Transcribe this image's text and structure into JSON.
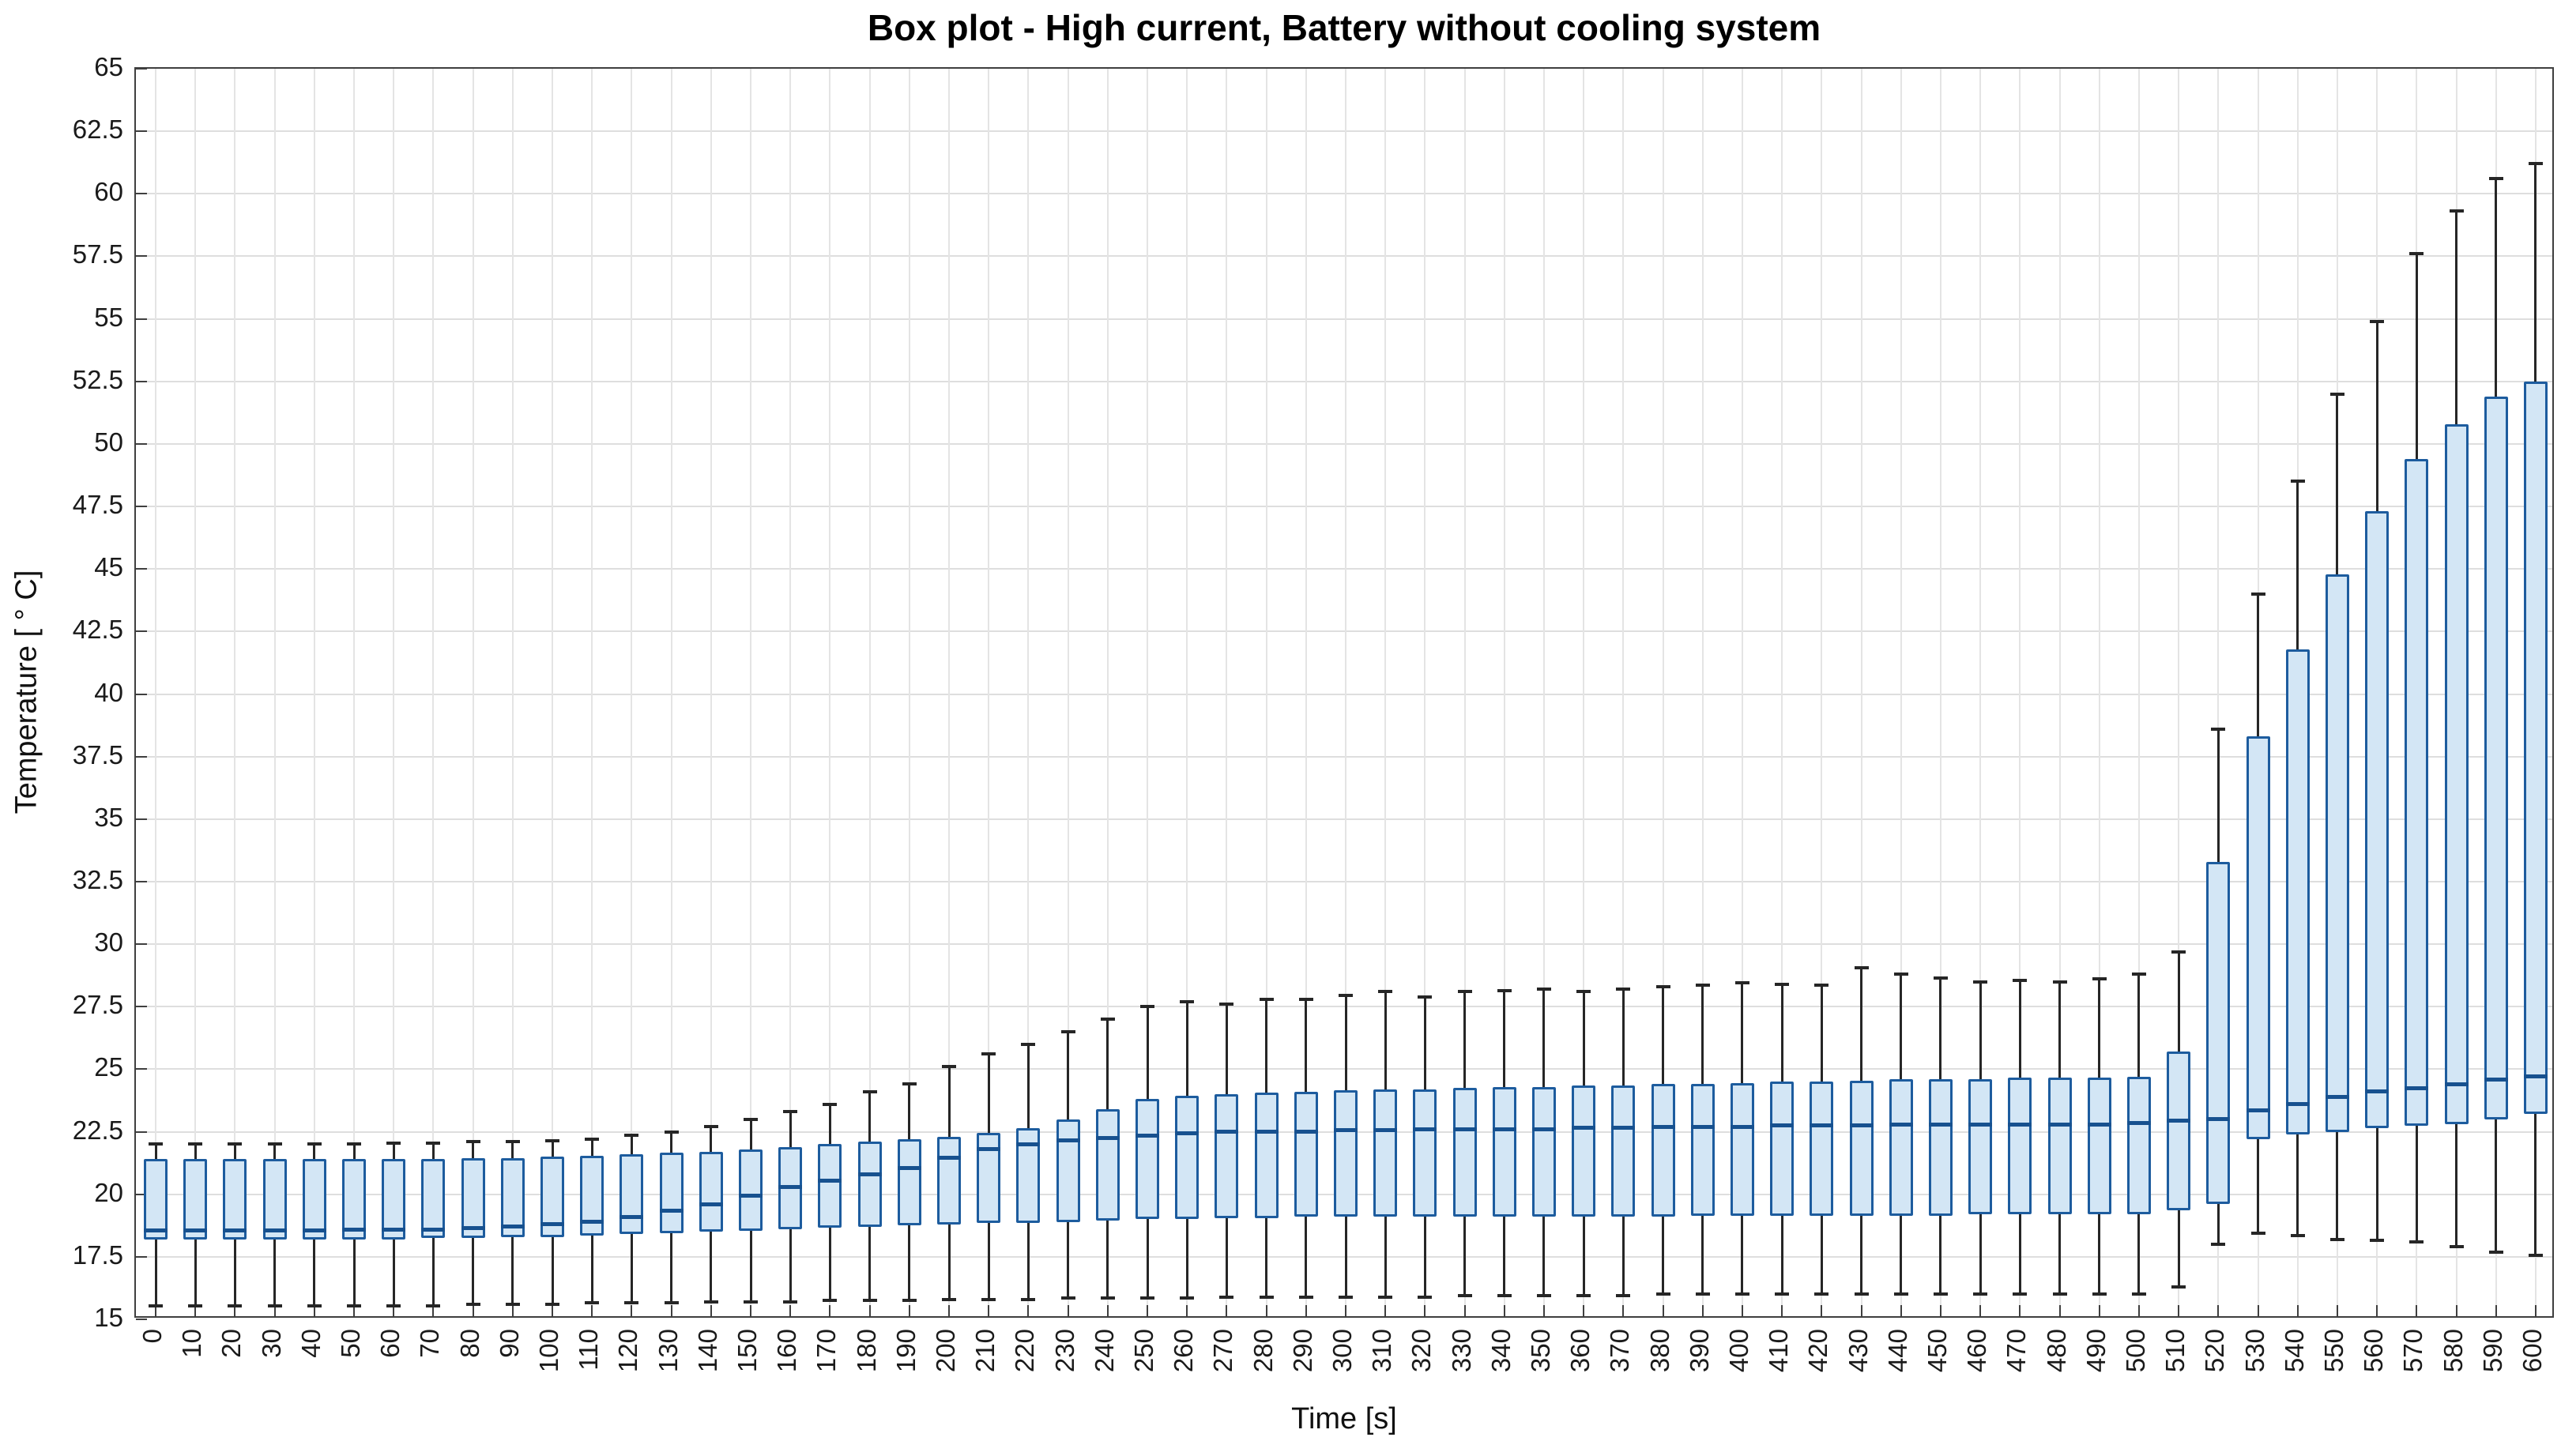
{
  "figure": {
    "title": "Box plot - High current, Battery without cooling system",
    "xlabel": "Time [s]",
    "ylabel": "Temperature [ ° C]"
  },
  "chart_data": {
    "type": "box",
    "title": "Box plot - High current, Battery without cooling system",
    "xlabel": "Time [s]",
    "ylabel": "Temperature [ ° C]",
    "ylim": [
      15,
      65
    ],
    "grid": true,
    "legend": null,
    "yticks": [
      "15",
      "17.5",
      "20",
      "22.5",
      "25",
      "27.5",
      "30",
      "32.5",
      "35",
      "37.5",
      "40",
      "42.5",
      "45",
      "47.5",
      "50",
      "52.5",
      "55",
      "57.5",
      "60",
      "62.5",
      "65"
    ],
    "categories": [
      "0",
      "10",
      "20",
      "30",
      "40",
      "50",
      "60",
      "70",
      "80",
      "90",
      "100",
      "110",
      "120",
      "130",
      "140",
      "150",
      "160",
      "170",
      "180",
      "190",
      "200",
      "210",
      "220",
      "230",
      "240",
      "250",
      "260",
      "270",
      "280",
      "290",
      "300",
      "310",
      "320",
      "330",
      "340",
      "350",
      "360",
      "370",
      "380",
      "390",
      "400",
      "410",
      "420",
      "430",
      "440",
      "450",
      "460",
      "470",
      "480",
      "490",
      "500",
      "510",
      "520",
      "530",
      "540",
      "550",
      "560",
      "570",
      "580",
      "590",
      "600"
    ],
    "boxes": [
      {
        "t": 0,
        "lo": 15.55,
        "q1": 18.2,
        "med": 18.55,
        "q3": 21.4,
        "hi": 22.0
      },
      {
        "t": 10,
        "lo": 15.55,
        "q1": 18.2,
        "med": 18.55,
        "q3": 21.4,
        "hi": 22.0
      },
      {
        "t": 20,
        "lo": 15.55,
        "q1": 18.2,
        "med": 18.55,
        "q3": 21.4,
        "hi": 22.0
      },
      {
        "t": 30,
        "lo": 15.55,
        "q1": 18.2,
        "med": 18.55,
        "q3": 21.4,
        "hi": 22.0
      },
      {
        "t": 40,
        "lo": 15.55,
        "q1": 18.2,
        "med": 18.55,
        "q3": 21.4,
        "hi": 22.0
      },
      {
        "t": 50,
        "lo": 15.55,
        "q1": 18.2,
        "med": 18.6,
        "q3": 21.4,
        "hi": 22.0
      },
      {
        "t": 60,
        "lo": 15.55,
        "q1": 18.2,
        "med": 18.6,
        "q3": 21.4,
        "hi": 22.05
      },
      {
        "t": 70,
        "lo": 15.55,
        "q1": 18.25,
        "med": 18.6,
        "q3": 21.4,
        "hi": 22.05
      },
      {
        "t": 80,
        "lo": 15.6,
        "q1": 18.25,
        "med": 18.65,
        "q3": 21.45,
        "hi": 22.1
      },
      {
        "t": 90,
        "lo": 15.6,
        "q1": 18.3,
        "med": 18.7,
        "q3": 21.45,
        "hi": 22.1
      },
      {
        "t": 100,
        "lo": 15.6,
        "q1": 18.3,
        "med": 18.8,
        "q3": 21.5,
        "hi": 22.15
      },
      {
        "t": 110,
        "lo": 15.65,
        "q1": 18.35,
        "med": 18.9,
        "q3": 21.55,
        "hi": 22.2
      },
      {
        "t": 120,
        "lo": 15.65,
        "q1": 18.4,
        "med": 19.1,
        "q3": 21.6,
        "hi": 22.35
      },
      {
        "t": 130,
        "lo": 15.65,
        "q1": 18.45,
        "med": 19.35,
        "q3": 21.65,
        "hi": 22.5
      },
      {
        "t": 140,
        "lo": 15.7,
        "q1": 18.5,
        "med": 19.6,
        "q3": 21.7,
        "hi": 22.7
      },
      {
        "t": 150,
        "lo": 15.7,
        "q1": 18.55,
        "med": 19.95,
        "q3": 21.8,
        "hi": 23.0
      },
      {
        "t": 160,
        "lo": 15.7,
        "q1": 18.6,
        "med": 20.3,
        "q3": 21.9,
        "hi": 23.3
      },
      {
        "t": 170,
        "lo": 15.75,
        "q1": 18.65,
        "med": 20.55,
        "q3": 22.0,
        "hi": 23.6
      },
      {
        "t": 180,
        "lo": 15.75,
        "q1": 18.7,
        "med": 20.8,
        "q3": 22.1,
        "hi": 24.1
      },
      {
        "t": 190,
        "lo": 15.75,
        "q1": 18.75,
        "med": 21.05,
        "q3": 22.2,
        "hi": 24.4
      },
      {
        "t": 200,
        "lo": 15.8,
        "q1": 18.8,
        "med": 21.45,
        "q3": 22.3,
        "hi": 25.1
      },
      {
        "t": 210,
        "lo": 15.8,
        "q1": 18.85,
        "med": 21.8,
        "q3": 22.45,
        "hi": 25.6
      },
      {
        "t": 220,
        "lo": 15.8,
        "q1": 18.85,
        "med": 22.0,
        "q3": 22.65,
        "hi": 26.0
      },
      {
        "t": 230,
        "lo": 15.85,
        "q1": 18.9,
        "med": 22.15,
        "q3": 23.0,
        "hi": 26.5
      },
      {
        "t": 240,
        "lo": 15.85,
        "q1": 18.95,
        "med": 22.25,
        "q3": 23.4,
        "hi": 27.0
      },
      {
        "t": 250,
        "lo": 15.85,
        "q1": 19.0,
        "med": 22.35,
        "q3": 23.8,
        "hi": 27.5
      },
      {
        "t": 260,
        "lo": 15.85,
        "q1": 19.0,
        "med": 22.45,
        "q3": 23.95,
        "hi": 27.7
      },
      {
        "t": 270,
        "lo": 15.9,
        "q1": 19.05,
        "med": 22.5,
        "q3": 24.0,
        "hi": 27.6
      },
      {
        "t": 280,
        "lo": 15.9,
        "q1": 19.05,
        "med": 22.5,
        "q3": 24.05,
        "hi": 27.8
      },
      {
        "t": 290,
        "lo": 15.9,
        "q1": 19.1,
        "med": 22.5,
        "q3": 24.1,
        "hi": 27.8
      },
      {
        "t": 300,
        "lo": 15.9,
        "q1": 19.1,
        "med": 22.55,
        "q3": 24.15,
        "hi": 27.95
      },
      {
        "t": 310,
        "lo": 15.9,
        "q1": 19.1,
        "med": 22.55,
        "q3": 24.2,
        "hi": 28.1
      },
      {
        "t": 320,
        "lo": 15.9,
        "q1": 19.1,
        "med": 22.6,
        "q3": 24.2,
        "hi": 27.9
      },
      {
        "t": 330,
        "lo": 15.95,
        "q1": 19.1,
        "med": 22.6,
        "q3": 24.25,
        "hi": 28.1
      },
      {
        "t": 340,
        "lo": 15.95,
        "q1": 19.1,
        "med": 22.6,
        "q3": 24.3,
        "hi": 28.15
      },
      {
        "t": 350,
        "lo": 15.95,
        "q1": 19.1,
        "med": 22.6,
        "q3": 24.3,
        "hi": 28.2
      },
      {
        "t": 360,
        "lo": 15.95,
        "q1": 19.1,
        "med": 22.65,
        "q3": 24.35,
        "hi": 28.1
      },
      {
        "t": 370,
        "lo": 15.95,
        "q1": 19.1,
        "med": 22.65,
        "q3": 24.35,
        "hi": 28.2
      },
      {
        "t": 380,
        "lo": 16.0,
        "q1": 19.1,
        "med": 22.7,
        "q3": 24.4,
        "hi": 28.3
      },
      {
        "t": 390,
        "lo": 16.0,
        "q1": 19.15,
        "med": 22.7,
        "q3": 24.4,
        "hi": 28.35
      },
      {
        "t": 400,
        "lo": 16.0,
        "q1": 19.15,
        "med": 22.7,
        "q3": 24.45,
        "hi": 28.45
      },
      {
        "t": 410,
        "lo": 16.0,
        "q1": 19.15,
        "med": 22.75,
        "q3": 24.5,
        "hi": 28.4
      },
      {
        "t": 420,
        "lo": 16.0,
        "q1": 19.15,
        "med": 22.75,
        "q3": 24.5,
        "hi": 28.35
      },
      {
        "t": 430,
        "lo": 16.0,
        "q1": 19.15,
        "med": 22.75,
        "q3": 24.55,
        "hi": 29.05
      },
      {
        "t": 440,
        "lo": 16.0,
        "q1": 19.15,
        "med": 22.8,
        "q3": 24.6,
        "hi": 28.8
      },
      {
        "t": 450,
        "lo": 16.0,
        "q1": 19.15,
        "med": 22.8,
        "q3": 24.6,
        "hi": 28.65
      },
      {
        "t": 460,
        "lo": 16.0,
        "q1": 19.2,
        "med": 22.8,
        "q3": 24.6,
        "hi": 28.5
      },
      {
        "t": 470,
        "lo": 16.0,
        "q1": 19.2,
        "med": 22.8,
        "q3": 24.65,
        "hi": 28.55
      },
      {
        "t": 480,
        "lo": 16.0,
        "q1": 19.2,
        "med": 22.8,
        "q3": 24.65,
        "hi": 28.5
      },
      {
        "t": 490,
        "lo": 16.0,
        "q1": 19.2,
        "med": 22.8,
        "q3": 24.65,
        "hi": 28.6
      },
      {
        "t": 500,
        "lo": 16.0,
        "q1": 19.2,
        "med": 22.85,
        "q3": 24.7,
        "hi": 28.8
      },
      {
        "t": 510,
        "lo": 16.3,
        "q1": 19.35,
        "med": 22.95,
        "q3": 25.7,
        "hi": 29.7
      },
      {
        "t": 520,
        "lo": 18.0,
        "q1": 19.6,
        "med": 23.0,
        "q3": 33.3,
        "hi": 38.6
      },
      {
        "t": 530,
        "lo": 18.45,
        "q1": 22.2,
        "med": 23.35,
        "q3": 38.3,
        "hi": 44.0
      },
      {
        "t": 540,
        "lo": 18.35,
        "q1": 22.4,
        "med": 23.6,
        "q3": 41.8,
        "hi": 48.5
      },
      {
        "t": 550,
        "lo": 18.2,
        "q1": 22.5,
        "med": 23.9,
        "q3": 44.8,
        "hi": 52.0
      },
      {
        "t": 560,
        "lo": 18.15,
        "q1": 22.65,
        "med": 24.1,
        "q3": 47.3,
        "hi": 54.9
      },
      {
        "t": 570,
        "lo": 18.1,
        "q1": 22.75,
        "med": 24.25,
        "q3": 49.4,
        "hi": 57.6
      },
      {
        "t": 580,
        "lo": 17.9,
        "q1": 22.8,
        "med": 24.4,
        "q3": 50.8,
        "hi": 59.3
      },
      {
        "t": 590,
        "lo": 17.7,
        "q1": 23.0,
        "med": 24.6,
        "q3": 51.9,
        "hi": 60.6
      },
      {
        "t": 600,
        "lo": 17.55,
        "q1": 23.2,
        "med": 24.7,
        "q3": 52.5,
        "hi": 61.2
      }
    ],
    "colors": {
      "box_fill": "#d3e6f5",
      "box_edge": "#1d5c9e",
      "median": "#17518f",
      "whisker": "#262626",
      "grid_h": "#dedede",
      "grid_v": "#e4e4e4",
      "axis": "#3f3f3f",
      "background": "#ffffff",
      "text": "#1a1a1a"
    }
  }
}
